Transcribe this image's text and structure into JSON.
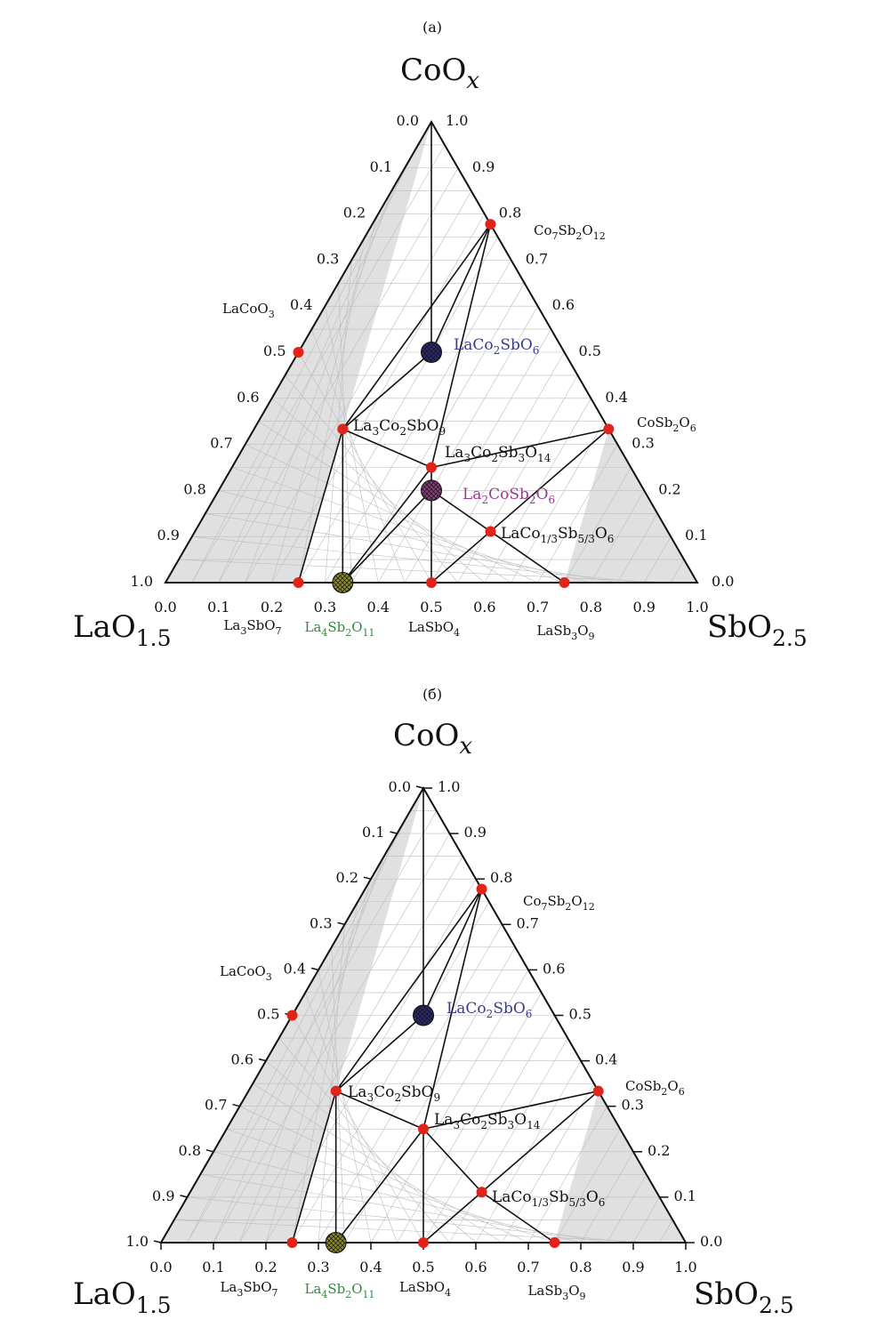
{
  "figure": {
    "panel_a_label": "(a)",
    "panel_b_label": "(б)"
  },
  "vertex_labels": {
    "top": {
      "main": "CoO",
      "sub": "x"
    },
    "left": {
      "main": "LaO",
      "sub": "1.5"
    },
    "right": {
      "main": "SbO",
      "sub": "2.5"
    }
  },
  "ticks": {
    "bottom": [
      "0.0",
      "0.1",
      "0.2",
      "0.3",
      "0.4",
      "0.5",
      "0.6",
      "0.7",
      "0.8",
      "0.9",
      "1.0"
    ],
    "left": [
      "0.0",
      "0.1",
      "0.2",
      "0.3",
      "0.4",
      "0.5",
      "0.6",
      "0.7",
      "0.8",
      "0.9",
      "1.0"
    ],
    "right": [
      "1.0",
      "0.9",
      "0.8",
      "0.7",
      "0.6",
      "0.5",
      "0.4",
      "0.3",
      "0.2",
      "0.1",
      "0.0"
    ]
  },
  "colors": {
    "phase_point": "#e0241a",
    "LaCo2SbO6": "#2b2a6e",
    "La2CoSb2O6": "#8a3d7d",
    "La4Sb2O11": "#8b8a2a",
    "label_blue": "#3c3c8c",
    "label_purple": "#9a3c8c",
    "label_green": "#2e8b3c",
    "shaded": "#e0e0e0",
    "grid": "#bdbdbd"
  },
  "compounds": {
    "LaCoO3": [
      {
        "t": "LaCoO"
      },
      {
        "s": "3"
      }
    ],
    "Co7Sb2O12": [
      {
        "t": "Co"
      },
      {
        "s": "7"
      },
      {
        "t": "Sb"
      },
      {
        "s": "2"
      },
      {
        "t": "O"
      },
      {
        "s": "12"
      }
    ],
    "LaCo2SbO6": [
      {
        "t": "LaCo"
      },
      {
        "s": "2"
      },
      {
        "t": "SbO"
      },
      {
        "s": "6"
      }
    ],
    "CoSb2O6": [
      {
        "t": "CoSb"
      },
      {
        "s": "2"
      },
      {
        "t": "O"
      },
      {
        "s": "6"
      }
    ],
    "La3Co2SbO9": [
      {
        "t": "La"
      },
      {
        "s": "3"
      },
      {
        "t": "Co"
      },
      {
        "s": "2"
      },
      {
        "t": "SbO"
      },
      {
        "s": "9"
      }
    ],
    "La3Co2Sb3O14": [
      {
        "t": "La"
      },
      {
        "s": "3"
      },
      {
        "t": "Co"
      },
      {
        "s": "2"
      },
      {
        "t": "Sb"
      },
      {
        "s": "3"
      },
      {
        "t": "O"
      },
      {
        "s": "14"
      }
    ],
    "La2CoSb2O6": [
      {
        "t": "La"
      },
      {
        "s": "2"
      },
      {
        "t": "CoSb"
      },
      {
        "s": "2"
      },
      {
        "t": "O"
      },
      {
        "s": "6"
      }
    ],
    "LaCo1/3Sb5/3O6": [
      {
        "t": "LaCo"
      },
      {
        "s": "1/3"
      },
      {
        "t": "Sb"
      },
      {
        "s": "5/3"
      },
      {
        "t": "O"
      },
      {
        "s": "6"
      }
    ],
    "La3SbO7": [
      {
        "t": "La"
      },
      {
        "s": "3"
      },
      {
        "t": "SbO"
      },
      {
        "s": "7"
      }
    ],
    "La4Sb2O11": [
      {
        "t": "La"
      },
      {
        "s": "4"
      },
      {
        "t": "Sb"
      },
      {
        "s": "2"
      },
      {
        "t": "O"
      },
      {
        "s": "11"
      }
    ],
    "LaSbO4": [
      {
        "t": "LaSbO"
      },
      {
        "s": "4"
      }
    ],
    "LaSb3O9": [
      {
        "t": "LaSb"
      },
      {
        "s": "3"
      },
      {
        "t": "O"
      },
      {
        "s": "9"
      }
    ]
  },
  "panels": [
    {
      "id": "a",
      "points": {
        "LaCoO3": [
          0,
          0.5
        ],
        "Co7Sb2O12": [
          0.2222,
          0.7778
        ],
        "LaCo2SbO6": [
          0.25,
          0.5
        ],
        "CoSb2O6": [
          0.6667,
          0.3333
        ],
        "La3Co2SbO9": [
          0.1667,
          0.3333
        ],
        "La3Co2Sb3O14": [
          0.375,
          0.25
        ],
        "La2CoSb2O6": [
          0.4,
          0.2
        ],
        "LaCo1/3Sb5/3O6": [
          0.5556,
          0.1111
        ],
        "La3SbO7": [
          0.25,
          0
        ],
        "La4Sb2O11": [
          0.3333,
          0
        ],
        "LaSbO4": [
          0.5,
          0
        ],
        "LaSb3O9": [
          0.75,
          0
        ]
      },
      "tie_lines": [
        [
          "Co7Sb2O12",
          "LaCo2SbO6"
        ],
        [
          "Co7Sb2O12",
          "La3Co2SbO9"
        ],
        [
          "Co7Sb2O12",
          "La3Co2Sb3O14"
        ],
        [
          "LaCo2SbO6",
          "La3Co2SbO9"
        ],
        [
          "La3Co2SbO9",
          "La3Co2Sb3O14"
        ],
        [
          "La3Co2SbO9",
          "La3SbO7"
        ],
        [
          "La3Co2SbO9",
          "La4Sb2O11"
        ],
        [
          "La3Co2Sb3O14",
          "CoSb2O6"
        ],
        [
          "La3Co2Sb3O14",
          "La2CoSb2O6"
        ],
        [
          "La2CoSb2O6",
          "La4Sb2O11"
        ],
        [
          "La2CoSb2O6",
          "LaSbO4"
        ],
        [
          "La2CoSb2O6",
          "LaCo1/3Sb5/3O6"
        ],
        [
          "LaCo1/3Sb5/3O6",
          "CoSb2O6"
        ],
        [
          "LaCo1/3Sb5/3O6",
          "LaSbO4"
        ],
        [
          "LaCo1/3Sb5/3O6",
          "LaSb3O9"
        ],
        [
          "La3Co2Sb3O14",
          "La4Sb2O11"
        ]
      ],
      "apex_lines": [
        [
          "LaCo2SbO6"
        ]
      ],
      "shaded": [
        [
          [
            0,
            0
          ],
          [
            0,
            1
          ],
          [
            0.25,
            0
          ]
        ],
        [
          [
            0.6667,
            0.3333
          ],
          [
            0.75,
            0
          ],
          [
            1,
            0
          ]
        ]
      ],
      "big_markers": [
        "LaCo2SbO6",
        "La2CoSb2O6",
        "La4Sb2O11"
      ]
    },
    {
      "id": "b",
      "points": {
        "LaCoO3": [
          0,
          0.5
        ],
        "Co7Sb2O12": [
          0.2222,
          0.7778
        ],
        "LaCo2SbO6": [
          0.25,
          0.5
        ],
        "CoSb2O6": [
          0.6667,
          0.3333
        ],
        "La3Co2SbO9": [
          0.1667,
          0.3333
        ],
        "La3Co2Sb3O14": [
          0.375,
          0.25
        ],
        "LaCo1/3Sb5/3O6": [
          0.5556,
          0.1111
        ],
        "La3SbO7": [
          0.25,
          0
        ],
        "La4Sb2O11": [
          0.3333,
          0
        ],
        "LaSbO4": [
          0.5,
          0
        ],
        "LaSb3O9": [
          0.75,
          0
        ]
      },
      "tie_lines": [
        [
          "Co7Sb2O12",
          "LaCo2SbO6"
        ],
        [
          "Co7Sb2O12",
          "La3Co2SbO9"
        ],
        [
          "Co7Sb2O12",
          "La3Co2Sb3O14"
        ],
        [
          "LaCo2SbO6",
          "La3Co2SbO9"
        ],
        [
          "La3Co2SbO9",
          "La3Co2Sb3O14"
        ],
        [
          "La3Co2SbO9",
          "La3SbO7"
        ],
        [
          "La3Co2SbO9",
          "La4Sb2O11"
        ],
        [
          "La3Co2Sb3O14",
          "La4Sb2O11"
        ],
        [
          "La3Co2Sb3O14",
          "LaSbO4"
        ],
        [
          "La3Co2Sb3O14",
          "LaCo1/3Sb5/3O6"
        ],
        [
          "LaCo1/3Sb5/3O6",
          "CoSb2O6"
        ],
        [
          "LaCo1/3Sb5/3O6",
          "LaSbO4"
        ],
        [
          "LaCo1/3Sb5/3O6",
          "LaSb3O9"
        ],
        [
          "La3Co2Sb3O14",
          "CoSb2O6"
        ]
      ],
      "apex_lines": [
        [
          "LaCo2SbO6"
        ]
      ],
      "shaded": [
        [
          [
            0,
            0
          ],
          [
            0,
            1
          ],
          [
            0.25,
            0
          ]
        ],
        [
          [
            0.6667,
            0.3333
          ],
          [
            0.75,
            0
          ],
          [
            1,
            0
          ]
        ]
      ],
      "big_markers": [
        "LaCo2SbO6",
        "La4Sb2O11"
      ]
    }
  ]
}
